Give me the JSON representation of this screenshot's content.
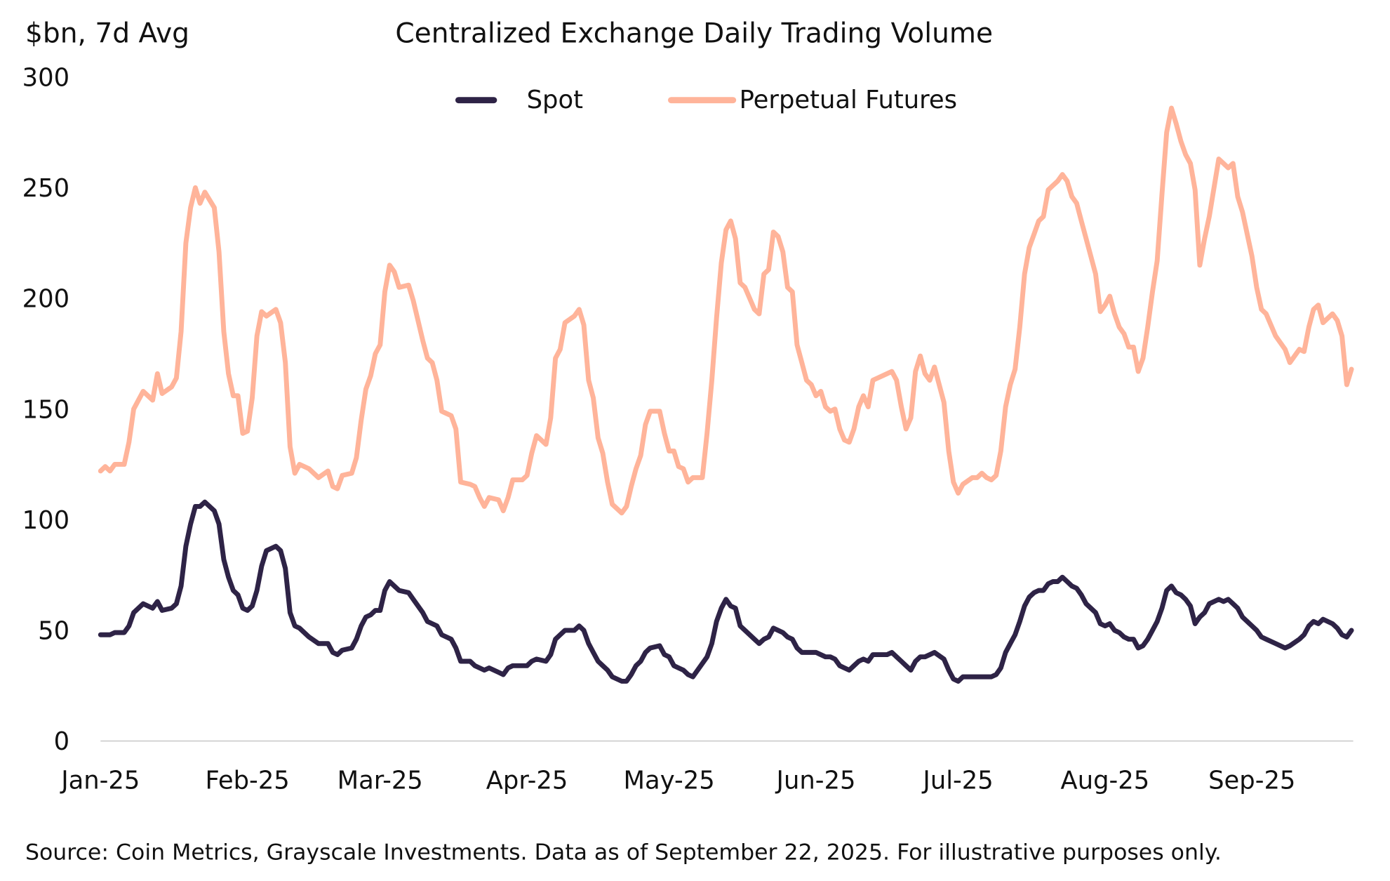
{
  "chart_data": {
    "type": "line",
    "title": "Centralized Exchange Daily Trading Volume",
    "ylabel": "$bn, 7d Avg",
    "xlabel": "",
    "ylim": [
      0,
      300
    ],
    "xlim": [
      "2025-01-01",
      "2025-09-22"
    ],
    "yticks": [
      "0",
      "50",
      "100",
      "150",
      "200",
      "250",
      "300"
    ],
    "xticks": [
      {
        "date": "2025-01-01",
        "label": "Jan-25"
      },
      {
        "date": "2025-02-01",
        "label": "Feb-25"
      },
      {
        "date": "2025-03-01",
        "label": "Mar-25"
      },
      {
        "date": "2025-04-01",
        "label": "Apr-25"
      },
      {
        "date": "2025-05-01",
        "label": "May-25"
      },
      {
        "date": "2025-06-01",
        "label": "Jun-25"
      },
      {
        "date": "2025-07-01",
        "label": "Jul-25"
      },
      {
        "date": "2025-08-01",
        "label": "Aug-25"
      },
      {
        "date": "2025-09-01",
        "label": "Sep-25"
      }
    ],
    "grid": false,
    "legend_position": "top-center",
    "source": "Source: Coin Metrics, Grayscale Investments. Data as of September 22, 2025. For illustrative purposes only.",
    "x": [
      "2025-01-01",
      "2025-01-02",
      "2025-01-03",
      "2025-01-04",
      "2025-01-06",
      "2025-01-07",
      "2025-01-08",
      "2025-01-10",
      "2025-01-12",
      "2025-01-13",
      "2025-01-14",
      "2025-01-16",
      "2025-01-17",
      "2025-01-18",
      "2025-01-19",
      "2025-01-20",
      "2025-01-21",
      "2025-01-22",
      "2025-01-23",
      "2025-01-25",
      "2025-01-26",
      "2025-01-27",
      "2025-01-28",
      "2025-01-29",
      "2025-01-30",
      "2025-01-31",
      "2025-02-01",
      "2025-02-02",
      "2025-02-03",
      "2025-02-04",
      "2025-02-05",
      "2025-02-07",
      "2025-02-08",
      "2025-02-09",
      "2025-02-10",
      "2025-02-11",
      "2025-02-12",
      "2025-02-14",
      "2025-02-16",
      "2025-02-18",
      "2025-02-19",
      "2025-02-20",
      "2025-02-21",
      "2025-02-23",
      "2025-02-24",
      "2025-02-25",
      "2025-02-26",
      "2025-02-27",
      "2025-02-28",
      "2025-03-01",
      "2025-03-02",
      "2025-03-03",
      "2025-03-04",
      "2025-03-05",
      "2025-03-07",
      "2025-03-08",
      "2025-03-10",
      "2025-03-11",
      "2025-03-12",
      "2025-03-13",
      "2025-03-14",
      "2025-03-16",
      "2025-03-17",
      "2025-03-18",
      "2025-03-20",
      "2025-03-21",
      "2025-03-22",
      "2025-03-23",
      "2025-03-24",
      "2025-03-26",
      "2025-03-27",
      "2025-03-28",
      "2025-03-29",
      "2025-03-31",
      "2025-04-01",
      "2025-04-02",
      "2025-04-03",
      "2025-04-05",
      "2025-04-06",
      "2025-04-07",
      "2025-04-08",
      "2025-04-09",
      "2025-04-11",
      "2025-04-12",
      "2025-04-13",
      "2025-04-14",
      "2025-04-15",
      "2025-04-16",
      "2025-04-17",
      "2025-04-18",
      "2025-04-19",
      "2025-04-21",
      "2025-04-22",
      "2025-04-23",
      "2025-04-24",
      "2025-04-25",
      "2025-04-26",
      "2025-04-27",
      "2025-04-29",
      "2025-04-30",
      "2025-05-01",
      "2025-05-02",
      "2025-05-03",
      "2025-05-04",
      "2025-05-05",
      "2025-05-06",
      "2025-05-08",
      "2025-05-09",
      "2025-05-10",
      "2025-05-11",
      "2025-05-12",
      "2025-05-13",
      "2025-05-14",
      "2025-05-15",
      "2025-05-16",
      "2025-05-17",
      "2025-05-19",
      "2025-05-20",
      "2025-05-21",
      "2025-05-22",
      "2025-05-23",
      "2025-05-24",
      "2025-05-25",
      "2025-05-26",
      "2025-05-27",
      "2025-05-28",
      "2025-05-29",
      "2025-05-30",
      "2025-05-31",
      "2025-06-01",
      "2025-06-02",
      "2025-06-03",
      "2025-06-04",
      "2025-06-05",
      "2025-06-06",
      "2025-06-07",
      "2025-06-08",
      "2025-06-09",
      "2025-06-10",
      "2025-06-11",
      "2025-06-12",
      "2025-06-13",
      "2025-06-14",
      "2025-06-16",
      "2025-06-17",
      "2025-06-18",
      "2025-06-19",
      "2025-06-20",
      "2025-06-21",
      "2025-06-22",
      "2025-06-23",
      "2025-06-24",
      "2025-06-25",
      "2025-06-26",
      "2025-06-28",
      "2025-06-29",
      "2025-06-30",
      "2025-07-01",
      "2025-07-02",
      "2025-07-04",
      "2025-07-05",
      "2025-07-06",
      "2025-07-07",
      "2025-07-08",
      "2025-07-09",
      "2025-07-10",
      "2025-07-11",
      "2025-07-12",
      "2025-07-13",
      "2025-07-14",
      "2025-07-15",
      "2025-07-16",
      "2025-07-17",
      "2025-07-18",
      "2025-07-19",
      "2025-07-20",
      "2025-07-21",
      "2025-07-22",
      "2025-07-23",
      "2025-07-24",
      "2025-07-25",
      "2025-07-26",
      "2025-07-27",
      "2025-07-28",
      "2025-07-30",
      "2025-07-31",
      "2025-08-01",
      "2025-08-02",
      "2025-08-03",
      "2025-08-04",
      "2025-08-05",
      "2025-08-06",
      "2025-08-07",
      "2025-08-08",
      "2025-08-09",
      "2025-08-10",
      "2025-08-11",
      "2025-08-12",
      "2025-08-13",
      "2025-08-14",
      "2025-08-15",
      "2025-08-16",
      "2025-08-17",
      "2025-08-18",
      "2025-08-19",
      "2025-08-20",
      "2025-08-21",
      "2025-08-22",
      "2025-08-23",
      "2025-08-25",
      "2025-08-26",
      "2025-08-27",
      "2025-08-28",
      "2025-08-29",
      "2025-08-30",
      "2025-09-01",
      "2025-09-02",
      "2025-09-03",
      "2025-09-04",
      "2025-09-06",
      "2025-09-08",
      "2025-09-09",
      "2025-09-11",
      "2025-09-12",
      "2025-09-13",
      "2025-09-14",
      "2025-09-15",
      "2025-09-16",
      "2025-09-18",
      "2025-09-19",
      "2025-09-20",
      "2025-09-21",
      "2025-09-22"
    ],
    "series": [
      {
        "name": "Spot",
        "color": "#2e2346",
        "values": [
          48,
          48,
          48,
          49,
          49,
          52,
          58,
          62,
          60,
          63,
          59,
          60,
          62,
          70,
          88,
          98,
          106,
          106,
          108,
          104,
          98,
          82,
          74,
          68,
          66,
          60,
          59,
          61,
          68,
          79,
          86,
          88,
          86,
          78,
          58,
          52,
          51,
          47,
          44,
          44,
          40,
          39,
          41,
          42,
          46,
          52,
          56,
          57,
          59,
          59,
          68,
          72,
          70,
          68,
          67,
          64,
          58,
          54,
          53,
          52,
          48,
          46,
          42,
          36,
          36,
          34,
          33,
          32,
          33,
          31,
          30,
          33,
          34,
          34,
          34,
          36,
          37,
          36,
          39,
          46,
          48,
          50,
          50,
          52,
          50,
          44,
          40,
          36,
          34,
          32,
          29,
          27,
          27,
          30,
          34,
          36,
          40,
          42,
          43,
          39,
          38,
          34,
          33,
          32,
          30,
          29,
          35,
          38,
          44,
          54,
          60,
          64,
          61,
          60,
          52,
          50,
          46,
          44,
          46,
          47,
          51,
          50,
          49,
          47,
          46,
          42,
          40,
          40,
          40,
          40,
          39,
          38,
          38,
          37,
          34,
          33,
          32,
          34,
          36,
          37,
          36,
          39,
          39,
          39,
          40,
          38,
          36,
          34,
          32,
          36,
          38,
          38,
          39,
          40,
          37,
          32,
          28,
          27,
          29,
          29,
          29,
          29,
          29,
          29,
          30,
          33,
          40,
          44,
          48,
          54,
          61,
          65,
          67,
          68,
          68,
          71,
          72,
          72,
          74,
          72,
          70,
          69,
          66,
          62,
          58,
          53,
          52,
          53,
          50,
          49,
          47,
          46,
          46,
          42,
          43,
          46,
          50,
          54,
          60,
          68,
          70,
          67,
          66,
          64,
          61,
          53,
          56,
          58,
          62,
          64,
          63,
          64,
          62,
          60,
          56,
          52,
          50,
          47,
          46,
          44,
          42,
          43,
          46,
          48,
          52,
          54,
          53,
          55,
          53,
          51,
          48,
          47,
          50
        ]
      },
      {
        "name": "Perpetual Futures",
        "color": "#ffb49a",
        "values": [
          122,
          124,
          122,
          125,
          125,
          135,
          150,
          158,
          154,
          166,
          157,
          160,
          164,
          185,
          225,
          241,
          250,
          243,
          248,
          241,
          221,
          185,
          166,
          156,
          156,
          139,
          140,
          155,
          183,
          194,
          192,
          195,
          189,
          171,
          133,
          121,
          125,
          123,
          119,
          122,
          115,
          114,
          120,
          121,
          128,
          145,
          159,
          165,
          175,
          179,
          203,
          215,
          212,
          205,
          206,
          199,
          181,
          173,
          171,
          163,
          149,
          147,
          141,
          117,
          116,
          115,
          110,
          106,
          110,
          109,
          104,
          110,
          118,
          118,
          120,
          130,
          138,
          134,
          146,
          173,
          177,
          189,
          192,
          195,
          188,
          163,
          155,
          137,
          130,
          117,
          107,
          103,
          106,
          115,
          123,
          129,
          143,
          149,
          149,
          139,
          131,
          131,
          124,
          123,
          117,
          119,
          119,
          139,
          163,
          191,
          216,
          231,
          235,
          227,
          207,
          205,
          195,
          193,
          211,
          213,
          230,
          228,
          221,
          205,
          203,
          179,
          171,
          163,
          161,
          156,
          158,
          151,
          149,
          150,
          141,
          136,
          135,
          141,
          151,
          156,
          151,
          163,
          164,
          166,
          167,
          163,
          151,
          141,
          146,
          167,
          174,
          166,
          163,
          169,
          153,
          131,
          117,
          112,
          116,
          119,
          119,
          121,
          119,
          118,
          120,
          131,
          151,
          161,
          168,
          187,
          211,
          223,
          229,
          235,
          237,
          249,
          251,
          253,
          256,
          253,
          246,
          243,
          235,
          227,
          211,
          194,
          197,
          201,
          193,
          187,
          184,
          178,
          178,
          167,
          173,
          187,
          203,
          217,
          247,
          275,
          286,
          279,
          271,
          265,
          261,
          249,
          215,
          227,
          237,
          263,
          261,
          259,
          261,
          246,
          239,
          219,
          205,
          195,
          193,
          183,
          177,
          171,
          177,
          176,
          187,
          195,
          197,
          189,
          193,
          190,
          183,
          161,
          168
        ]
      }
    ]
  }
}
